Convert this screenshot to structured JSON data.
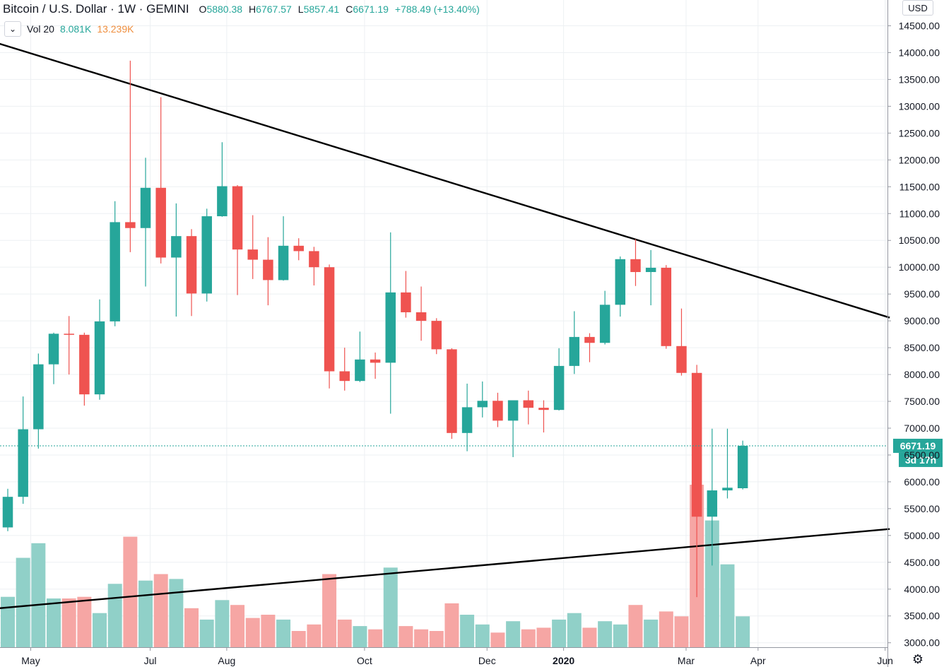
{
  "header": {
    "symbol": "Bitcoin / U.S. Dollar · 1W · GEMINI",
    "ohlc": [
      {
        "k": "O",
        "v": "5880.38"
      },
      {
        "k": "H",
        "v": "6767.57"
      },
      {
        "k": "L",
        "v": "5857.41"
      },
      {
        "k": "C",
        "v": "6671.19"
      },
      {
        "k": "",
        "v": "+788.49 (+13.40%)"
      }
    ]
  },
  "volume_legend": {
    "label": "Vol 20",
    "value": "8.081K",
    "ma": "13.239K"
  },
  "currency_label": "USD",
  "icons": {
    "collapse": "chevron-down-icon",
    "settings": "gear-icon"
  },
  "colors": {
    "up": "#26a69a",
    "down": "#ef5350",
    "vol_up": "#90d0c8",
    "vol_down": "#f6a6a4",
    "price_line": "#26a69a"
  },
  "chart_data": {
    "type": "candlestick",
    "interval": "1W",
    "ylim": [
      2950,
      14880
    ],
    "y_ticks": [
      "3000.00",
      "3500.00",
      "4000.00",
      "4500.00",
      "5000.00",
      "5500.00",
      "6000.00",
      "6500.00",
      "7000.00",
      "7500.00",
      "8000.00",
      "8500.00",
      "9000.00",
      "9500.00",
      "10000.00",
      "10500.00",
      "11000.00",
      "11500.00",
      "12000.00",
      "12500.00",
      "13000.00",
      "13500.00",
      "14000.00",
      "14500.00"
    ],
    "x_ticks": [
      {
        "label": "May",
        "index": 1.5,
        "bold": false
      },
      {
        "label": "Jul",
        "index": 9.3,
        "bold": false
      },
      {
        "label": "Aug",
        "index": 14.3,
        "bold": false
      },
      {
        "label": "Oct",
        "index": 23.3,
        "bold": false
      },
      {
        "label": "Dec",
        "index": 31.3,
        "bold": false
      },
      {
        "label": "2020",
        "index": 36.3,
        "bold": true
      },
      {
        "label": "Mar",
        "index": 44.3,
        "bold": false
      },
      {
        "label": "Apr",
        "index": 49.0,
        "bold": false
      },
      {
        "label": "Jun",
        "index": 57.3,
        "bold": false
      }
    ],
    "candles": [
      {
        "o": 5150,
        "h": 5870,
        "l": 5080,
        "c": 5720,
        "v": 0.31
      },
      {
        "o": 5720,
        "h": 7590,
        "l": 5590,
        "c": 6980,
        "v": 0.55
      },
      {
        "o": 6980,
        "h": 8390,
        "l": 6620,
        "c": 8190,
        "v": 0.64
      },
      {
        "o": 8190,
        "h": 8780,
        "l": 7820,
        "c": 8760,
        "v": 0.3
      },
      {
        "o": 8760,
        "h": 9090,
        "l": 8000,
        "c": 8740,
        "v": 0.3
      },
      {
        "o": 8740,
        "h": 8780,
        "l": 7420,
        "c": 7630,
        "v": 0.31
      },
      {
        "o": 7630,
        "h": 9400,
        "l": 7530,
        "c": 8990,
        "v": 0.21
      },
      {
        "o": 8990,
        "h": 11230,
        "l": 8900,
        "c": 10840,
        "v": 0.39
      },
      {
        "o": 10840,
        "h": 13850,
        "l": 10280,
        "c": 10730,
        "v": 0.68
      },
      {
        "o": 10730,
        "h": 12040,
        "l": 9640,
        "c": 11480,
        "v": 0.41
      },
      {
        "o": 11480,
        "h": 13170,
        "l": 10070,
        "c": 10180,
        "v": 0.45
      },
      {
        "o": 10180,
        "h": 11190,
        "l": 9080,
        "c": 10580,
        "v": 0.42
      },
      {
        "o": 10580,
        "h": 10710,
        "l": 9090,
        "c": 9510,
        "v": 0.24
      },
      {
        "o": 9510,
        "h": 11090,
        "l": 9360,
        "c": 10950,
        "v": 0.17
      },
      {
        "o": 10950,
        "h": 12330,
        "l": 10940,
        "c": 11510,
        "v": 0.29
      },
      {
        "o": 11510,
        "h": 11530,
        "l": 9480,
        "c": 10330,
        "v": 0.26
      },
      {
        "o": 10330,
        "h": 10970,
        "l": 9780,
        "c": 10140,
        "v": 0.18
      },
      {
        "o": 10140,
        "h": 10560,
        "l": 9290,
        "c": 9760,
        "v": 0.2
      },
      {
        "o": 9760,
        "h": 10950,
        "l": 9750,
        "c": 10400,
        "v": 0.17
      },
      {
        "o": 10400,
        "h": 10540,
        "l": 10130,
        "c": 10300,
        "v": 0.1
      },
      {
        "o": 10300,
        "h": 10380,
        "l": 9660,
        "c": 10000,
        "v": 0.14
      },
      {
        "o": 10000,
        "h": 10050,
        "l": 7740,
        "c": 8060,
        "v": 0.45
      },
      {
        "o": 8060,
        "h": 8500,
        "l": 7700,
        "c": 7880,
        "v": 0.17
      },
      {
        "o": 7880,
        "h": 8800,
        "l": 7860,
        "c": 8280,
        "v": 0.13
      },
      {
        "o": 8280,
        "h": 8410,
        "l": 7920,
        "c": 8220,
        "v": 0.11
      },
      {
        "o": 8220,
        "h": 10650,
        "l": 7270,
        "c": 9530,
        "v": 0.49
      },
      {
        "o": 9530,
        "h": 9930,
        "l": 9060,
        "c": 9160,
        "v": 0.13
      },
      {
        "o": 9160,
        "h": 9640,
        "l": 8630,
        "c": 9000,
        "v": 0.11
      },
      {
        "o": 9000,
        "h": 9050,
        "l": 8380,
        "c": 8470,
        "v": 0.1
      },
      {
        "o": 8470,
        "h": 8490,
        "l": 6800,
        "c": 6910,
        "v": 0.27
      },
      {
        "o": 6910,
        "h": 7830,
        "l": 6570,
        "c": 7390,
        "v": 0.2
      },
      {
        "o": 7390,
        "h": 7870,
        "l": 7200,
        "c": 7510,
        "v": 0.14
      },
      {
        "o": 7510,
        "h": 7660,
        "l": 7020,
        "c": 7140,
        "v": 0.09
      },
      {
        "o": 7140,
        "h": 7510,
        "l": 6460,
        "c": 7520,
        "v": 0.16
      },
      {
        "o": 7520,
        "h": 7700,
        "l": 7070,
        "c": 7380,
        "v": 0.11
      },
      {
        "o": 7380,
        "h": 7520,
        "l": 6920,
        "c": 7340,
        "v": 0.12
      },
      {
        "o": 7340,
        "h": 8490,
        "l": 7330,
        "c": 8160,
        "v": 0.17
      },
      {
        "o": 8160,
        "h": 9180,
        "l": 8010,
        "c": 8700,
        "v": 0.21
      },
      {
        "o": 8700,
        "h": 8770,
        "l": 8230,
        "c": 8590,
        "v": 0.12
      },
      {
        "o": 8590,
        "h": 9560,
        "l": 8560,
        "c": 9300,
        "v": 0.16
      },
      {
        "o": 9300,
        "h": 10200,
        "l": 9080,
        "c": 10150,
        "v": 0.14
      },
      {
        "o": 10150,
        "h": 10520,
        "l": 9650,
        "c": 9910,
        "v": 0.26
      },
      {
        "o": 9910,
        "h": 10320,
        "l": 9290,
        "c": 9990,
        "v": 0.17
      },
      {
        "o": 9990,
        "h": 10040,
        "l": 8480,
        "c": 8530,
        "v": 0.22
      },
      {
        "o": 8530,
        "h": 9230,
        "l": 7980,
        "c": 8030,
        "v": 0.19
      },
      {
        "o": 8030,
        "h": 8180,
        "l": 3850,
        "c": 5350,
        "v": 1.0
      },
      {
        "o": 5350,
        "h": 6990,
        "l": 4440,
        "c": 5840,
        "v": 0.78
      },
      {
        "o": 5840,
        "h": 6990,
        "l": 5690,
        "c": 5890,
        "v": 0.51
      },
      {
        "o": 5880.38,
        "h": 6767.57,
        "l": 5857.41,
        "c": 6671.19,
        "v": 0.19
      }
    ],
    "trendlines": [
      {
        "from": [
          -0.7,
          14180
        ],
        "to": [
          57.6,
          9060
        ]
      },
      {
        "from": [
          -0.7,
          3640
        ],
        "to": [
          57.6,
          5120
        ]
      }
    ],
    "last_price": {
      "value": "6671.19",
      "countdown": "3d 17h"
    }
  }
}
